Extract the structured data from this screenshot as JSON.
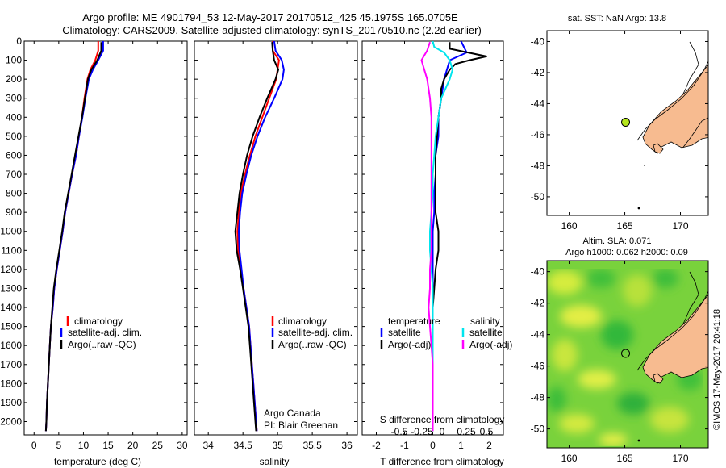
{
  "header": {
    "title_line1": "Argo profile: ME 4901794_53 12-May-2017 20170512_425 45.1975S 165.0705E",
    "title_line2": "Climatology: CARS2009. Satellite-adjusted climatology: synTS_20170510.nc (2.2d earlier)"
  },
  "colors": {
    "climatology": "#ff0000",
    "satellite": "#0000ff",
    "argo": "#000000",
    "sat_salinity": "#00e5ee",
    "argo_salinity": "#ff00ff",
    "land": "#f7bb90"
  },
  "chart_data": [
    {
      "type": "line",
      "xlabel": "temperature (deg C)",
      "ylim": [
        2070,
        0
      ],
      "xlim": [
        -2,
        31
      ],
      "x_ticks": [
        0,
        5,
        10,
        15,
        20,
        25,
        30
      ],
      "y_ticks": [
        0,
        100,
        200,
        300,
        400,
        500,
        600,
        700,
        800,
        900,
        1000,
        1100,
        1200,
        1300,
        1400,
        1500,
        1600,
        1700,
        1800,
        1900,
        2000
      ],
      "legend": [
        "climatology",
        "satellite-adj. clim.",
        "Argo(..raw -QC)"
      ],
      "legend_position": "lower-right",
      "series": [
        {
          "name": "climatology",
          "color": "#ff0000",
          "depth": [
            0,
            50,
            100,
            150,
            200,
            300,
            400,
            500,
            600,
            700,
            800,
            900,
            1000,
            1100,
            1200,
            1300,
            1400,
            1500,
            1600,
            1700,
            1800,
            1900,
            2000,
            2050
          ],
          "values": [
            13.0,
            13.0,
            12.4,
            11.4,
            10.8,
            10.2,
            9.7,
            9.1,
            8.5,
            7.7,
            7.0,
            6.3,
            5.8,
            5.2,
            4.6,
            4.1,
            3.8,
            3.4,
            3.2,
            3.0,
            2.8,
            2.6,
            2.5,
            2.4
          ]
        },
        {
          "name": "satellite-adj. clim.",
          "color": "#0000ff",
          "depth": [
            0,
            50,
            100,
            150,
            200,
            300,
            400,
            500,
            600,
            700,
            800,
            900,
            1000,
            1100,
            1200,
            1300,
            1400,
            1500,
            1600,
            1700,
            1800,
            1900,
            2000,
            2050
          ],
          "values": [
            14.0,
            14.0,
            13.0,
            11.9,
            11.1,
            10.4,
            9.8,
            9.1,
            8.5,
            7.7,
            7.0,
            6.3,
            5.8,
            5.2,
            4.6,
            4.1,
            3.8,
            3.4,
            3.2,
            3.0,
            2.8,
            2.6,
            2.5,
            2.4
          ]
        },
        {
          "name": "Argo(..raw -QC)",
          "color": "#000000",
          "depth": [
            5,
            50,
            100,
            150,
            200,
            300,
            400,
            500,
            600,
            700,
            800,
            900,
            1000,
            1100,
            1200,
            1300,
            1400,
            1500,
            1600,
            1700,
            1800,
            1900,
            2000,
            2050
          ],
          "values": [
            13.6,
            13.6,
            12.8,
            11.6,
            10.9,
            10.3,
            9.7,
            9.0,
            8.3,
            7.6,
            6.9,
            6.2,
            5.7,
            5.1,
            4.5,
            4.0,
            3.7,
            3.4,
            3.2,
            3.0,
            2.8,
            2.6,
            2.5,
            2.4
          ]
        }
      ]
    },
    {
      "type": "line",
      "xlabel": "salinity",
      "ylim": [
        2070,
        0
      ],
      "xlim": [
        33.8,
        36.15
      ],
      "x_ticks": [
        34,
        34.5,
        35,
        35.5,
        36
      ],
      "legend": [
        "climatology",
        "satellite-adj. clim.",
        "Argo(..raw -QC)"
      ],
      "legend_position": "lower-right",
      "notes": [
        "Argo Canada",
        "PI: Blair Greenan"
      ],
      "series": [
        {
          "name": "climatology",
          "color": "#ff0000",
          "depth": [
            0,
            50,
            100,
            150,
            200,
            300,
            400,
            500,
            600,
            700,
            800,
            900,
            1000,
            1100,
            1200,
            1300,
            1400,
            1500,
            1600,
            1700,
            1800,
            1900,
            2000,
            2050
          ],
          "values": [
            34.93,
            34.93,
            35.02,
            35.0,
            34.98,
            34.88,
            34.78,
            34.68,
            34.6,
            34.53,
            34.47,
            34.44,
            34.42,
            34.43,
            34.47,
            34.51,
            34.55,
            34.59,
            34.61,
            34.63,
            34.65,
            34.67,
            34.69,
            34.7
          ]
        },
        {
          "name": "satellite-adj. clim.",
          "color": "#0000ff",
          "depth": [
            0,
            50,
            100,
            150,
            200,
            300,
            400,
            500,
            600,
            700,
            800,
            900,
            1000,
            1100,
            1200,
            1300,
            1400,
            1500,
            1600,
            1700,
            1800,
            1900,
            2000,
            2050
          ],
          "values": [
            34.95,
            34.97,
            35.06,
            35.09,
            35.07,
            34.95,
            34.82,
            34.71,
            34.62,
            34.55,
            34.49,
            34.46,
            34.44,
            34.45,
            34.48,
            34.51,
            34.55,
            34.59,
            34.61,
            34.63,
            34.65,
            34.67,
            34.69,
            34.7
          ]
        },
        {
          "name": "Argo(..raw -QC)",
          "color": "#000000",
          "depth": [
            5,
            50,
            100,
            150,
            200,
            300,
            400,
            500,
            600,
            700,
            800,
            900,
            1000,
            1100,
            1200,
            1300,
            1400,
            1500,
            1600,
            1700,
            1800,
            1900,
            2000,
            2050
          ],
          "values": [
            34.92,
            34.93,
            34.95,
            35.01,
            34.97,
            34.85,
            34.74,
            34.64,
            34.56,
            34.5,
            34.45,
            34.42,
            34.39,
            34.41,
            34.46,
            34.5,
            34.54,
            34.58,
            34.6,
            34.62,
            34.64,
            34.66,
            34.68,
            34.69
          ]
        }
      ]
    },
    {
      "type": "line",
      "xlabel": "T difference from climatology",
      "xlabel_top": "S difference from climatology",
      "ylim": [
        2070,
        0
      ],
      "xlim": [
        -2.5,
        2.5
      ],
      "x_ticks": [
        -2,
        -1,
        0,
        1,
        2
      ],
      "x_ticks_top": [
        "-0.5",
        "-0.25",
        "0",
        "0.25",
        "0.5"
      ],
      "legend_headers": [
        "temperature",
        "salinity"
      ],
      "legend": [
        "satellite",
        "Argo(-adj)",
        "satellite",
        "Argo(-adj)"
      ],
      "series": [
        {
          "name": "satellite",
          "color": "#0000ff",
          "depth": [
            0,
            30,
            60,
            100,
            150,
            200,
            300,
            400,
            500,
            600,
            700,
            800,
            900,
            1000,
            1100,
            1200,
            1300,
            1400,
            1500,
            1600,
            1700,
            1800,
            1900,
            2000,
            2050
          ],
          "values": [
            1.0,
            1.1,
            1.2,
            0.6,
            0.5,
            0.4,
            0.3,
            0.2,
            0.2,
            0.1,
            0.1,
            0.05,
            0.05,
            0.0,
            0.0,
            0.0,
            0.0,
            0.0,
            0.0,
            0.0,
            0.0,
            0.0,
            0.0,
            0.0,
            0.0
          ]
        },
        {
          "name": "Argo(-adj)",
          "color": "#000000",
          "depth": [
            5,
            40,
            80,
            100,
            120,
            150,
            200,
            250,
            300,
            400,
            500,
            600,
            700,
            800,
            900,
            1000,
            1100,
            1200,
            1300,
            1400,
            1500,
            1600,
            1700,
            1800,
            1900,
            2000,
            2050
          ],
          "values": [
            0.6,
            0.6,
            1.9,
            1.3,
            0.8,
            0.6,
            0.4,
            0.3,
            0.3,
            0.2,
            0.15,
            0.1,
            0.1,
            0.1,
            0.1,
            0.2,
            0.2,
            0.1,
            0.05,
            0.0,
            0.0,
            0.0,
            0.0,
            0.0,
            0.0,
            0.0,
            0.0
          ]
        },
        {
          "name": "satellite",
          "color": "#00e5ee",
          "depth": [
            0,
            30,
            60,
            100,
            150,
            200,
            300,
            400,
            500,
            600,
            700,
            800,
            900,
            1000,
            1100,
            1200,
            1300,
            1400,
            1500,
            1600,
            1700,
            1800,
            1900,
            2000,
            2050
          ],
          "values": [
            0.0,
            0.05,
            0.4,
            0.6,
            0.7,
            0.6,
            0.3,
            0.2,
            0.1,
            0.05,
            0.0,
            0.0,
            -0.05,
            -0.1,
            -0.1,
            -0.05,
            0.0,
            0.0,
            0.0,
            0.0,
            0.0,
            0.0,
            0.0,
            0.0,
            0.0
          ]
        },
        {
          "name": "Argo(-adj)",
          "color": "#ff00ff",
          "depth": [
            5,
            50,
            100,
            150,
            200,
            300,
            400,
            500,
            600,
            700,
            800,
            900,
            1000,
            1100,
            1200,
            1300,
            1400,
            1500,
            1600,
            1700,
            1800,
            1900,
            2000,
            2050
          ],
          "values": [
            -0.1,
            -0.2,
            -0.4,
            -0.3,
            -0.2,
            -0.1,
            -0.05,
            -0.05,
            -0.05,
            -0.05,
            -0.05,
            -0.05,
            -0.05,
            -0.05,
            -0.1,
            -0.1,
            -0.15,
            -0.1,
            -0.05,
            0.0,
            0.0,
            0.0,
            0.0,
            0.0
          ]
        }
      ]
    }
  ],
  "map_top": {
    "title": "sat. SST: NaN Argo: 13.8",
    "x_ticks": [
      160,
      165,
      170
    ],
    "y_ticks": [
      -40,
      -42,
      -44,
      -46,
      -48,
      -50
    ],
    "xlim": [
      158,
      172.5
    ],
    "ylim": [
      -51.2,
      -39.3
    ],
    "profile_lon": 165.0705,
    "profile_lat": -45.1975
  },
  "map_bottom": {
    "title_line1": "Altim. SLA: 0.071",
    "title_line2": "Argo h1000: 0.062 h2000: 0.09",
    "x_ticks": [
      160,
      165,
      170
    ],
    "y_ticks": [
      -40,
      -42,
      -44,
      -46,
      -48,
      -50
    ],
    "xlim": [
      158,
      172.5
    ],
    "ylim": [
      -51.2,
      -39.3
    ],
    "profile_lon": 165.0705,
    "profile_lat": -45.1975,
    "side_label": "©IMOS 17-May-2017 20:41:18"
  }
}
